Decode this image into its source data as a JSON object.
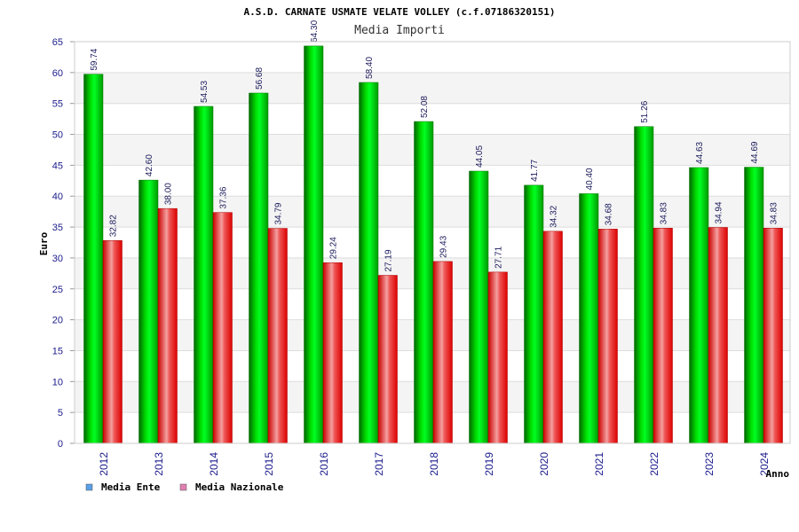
{
  "chart_data": {
    "type": "bar",
    "title": "A.S.D. CARNATE USMATE VELATE VOLLEY (c.f.07186320151)",
    "subtitle": "Media Importi",
    "ylabel": "Euro",
    "xlabel": "Anno",
    "ylim": [
      0,
      65
    ],
    "yticks": [
      0,
      5,
      10,
      15,
      20,
      25,
      30,
      35,
      40,
      45,
      50,
      55,
      60,
      65
    ],
    "grid": true,
    "legend_position": "bottom-left",
    "categories": [
      "2012",
      "2013",
      "2014",
      "2015",
      "2016",
      "2017",
      "2018",
      "2019",
      "2020",
      "2021",
      "2022",
      "2023",
      "2024"
    ],
    "series": [
      {
        "name": "Media Ente",
        "color": "#00cc00",
        "legend_color": "#5aa0e8",
        "values": [
          59.74,
          42.6,
          54.53,
          56.68,
          64.3,
          58.4,
          52.08,
          44.05,
          41.77,
          40.4,
          51.26,
          44.63,
          44.69
        ],
        "labels": [
          "59.74",
          "42.60",
          "54.53",
          "56.68",
          "64.30",
          "58.40",
          "52.08",
          "44.05",
          "41.77",
          "40.40",
          "51.26",
          "44.63",
          "44.69"
        ]
      },
      {
        "name": "Media Nazionale",
        "color": "#ee0000",
        "legend_color": "#e080b0",
        "values": [
          32.82,
          38.0,
          37.36,
          34.79,
          29.24,
          27.19,
          29.43,
          27.71,
          34.32,
          34.68,
          34.83,
          34.94,
          34.83
        ],
        "labels": [
          "32.82",
          "38.00",
          "37.36",
          "34.79",
          "29.24",
          "27.19",
          "29.43",
          "27.71",
          "34.32",
          "34.68",
          "34.83",
          "34.94",
          "34.83"
        ]
      }
    ]
  }
}
